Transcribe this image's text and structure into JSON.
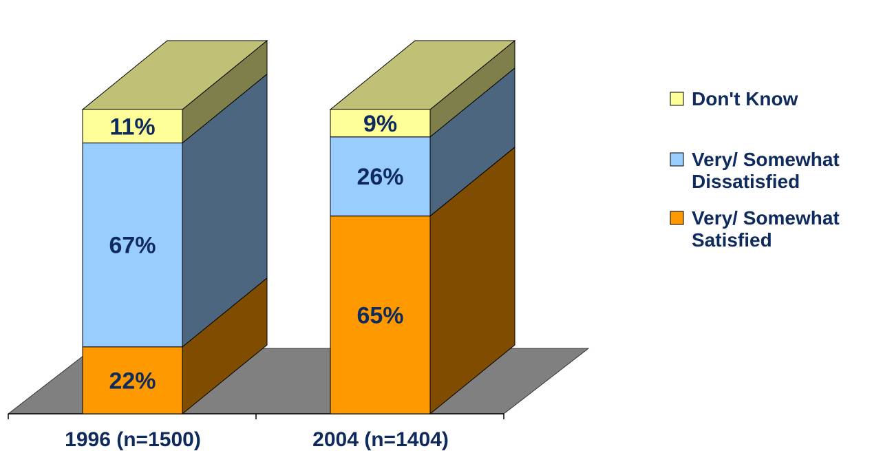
{
  "chart_data": {
    "type": "bar",
    "stacked": true,
    "three_d": true,
    "categories": [
      "1996 (n=1500)",
      "2004 (n=1404)"
    ],
    "series": [
      {
        "name": "Very/ Somewhat Satisfied",
        "values": [
          22,
          65
        ],
        "labels": [
          "22%",
          "65%"
        ],
        "color": "#ff9900",
        "side_color": "#7f4c00"
      },
      {
        "name": "Very/ Somewhat Dissatisfied",
        "values": [
          67,
          26
        ],
        "labels": [
          "67%",
          "26%"
        ],
        "color": "#99ccff",
        "side_color": "#4d667f"
      },
      {
        "name": "Don't Know",
        "values": [
          11,
          9
        ],
        "labels": [
          "11%",
          "9%"
        ],
        "color": "#ffff99",
        "side_color": "#7f7f4c"
      }
    ],
    "ylim": [
      0,
      100
    ],
    "grid": false,
    "legend": {
      "position": "right",
      "entries": [
        {
          "series_index": 2,
          "lines": [
            "Don't Know"
          ]
        },
        {
          "series_index": 1,
          "lines": [
            "Very/ Somewhat",
            "Dissatisfied"
          ]
        },
        {
          "series_index": 0,
          "lines": [
            "Very/ Somewhat",
            "Satisfied"
          ]
        }
      ]
    },
    "colors": {
      "top_face": "#c0c077",
      "floor": "#808080",
      "label_text": "#0f2a5c",
      "axis": "#000000"
    }
  }
}
